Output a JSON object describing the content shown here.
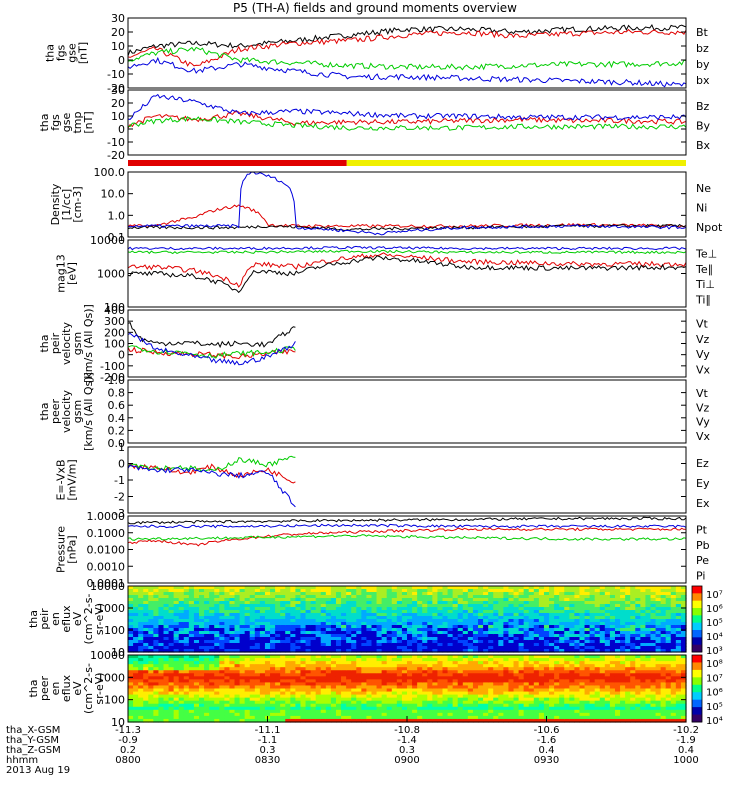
{
  "title": "P5 (TH-A) fields and ground moments overview",
  "colors": {
    "black": "#000000",
    "red": "#e00000",
    "green": "#00cc00",
    "blue": "#0000dd",
    "yellow": "#f0f000"
  },
  "chart_data": [
    {
      "type": "line",
      "ylabel": [
        "tha",
        "fgs",
        "gse",
        "[nT]"
      ],
      "yticks": [
        "30",
        "20",
        "10",
        "0",
        "-10",
        "-20"
      ],
      "ylim": [
        -20,
        30
      ],
      "legend": [
        {
          "text": "Bt",
          "color": "black"
        },
        {
          "text": "bz",
          "color": "red"
        },
        {
          "text": "by",
          "color": "green"
        },
        {
          "text": "bx",
          "color": "blue"
        }
      ],
      "series": [
        {
          "name": "Bt",
          "color": "black",
          "x": [
            0,
            0.05,
            0.12,
            0.2,
            0.3,
            0.4,
            0.5,
            0.6,
            0.7,
            0.8,
            0.9,
            1
          ],
          "y": [
            5,
            10,
            12,
            10,
            14,
            18,
            22,
            22,
            20,
            22,
            23,
            23
          ]
        },
        {
          "name": "bz",
          "color": "red",
          "x": [
            0,
            0.05,
            0.12,
            0.2,
            0.3,
            0.4,
            0.5,
            0.6,
            0.7,
            0.8,
            0.9,
            1
          ],
          "y": [
            2,
            8,
            -5,
            8,
            12,
            14,
            18,
            20,
            17,
            19,
            20,
            20
          ]
        },
        {
          "name": "by",
          "color": "green",
          "x": [
            0,
            0.05,
            0.12,
            0.2,
            0.3,
            0.4,
            0.5,
            0.6,
            0.7,
            0.8,
            0.9,
            1
          ],
          "y": [
            0,
            5,
            8,
            0,
            -2,
            -4,
            -5,
            -5,
            -4,
            -3,
            -3,
            -2
          ]
        },
        {
          "name": "bx",
          "color": "blue",
          "x": [
            0,
            0.05,
            0.12,
            0.2,
            0.3,
            0.4,
            0.5,
            0.6,
            0.7,
            0.8,
            0.9,
            1
          ],
          "y": [
            -5,
            0,
            -8,
            -3,
            -8,
            -12,
            -12,
            -13,
            -14,
            -15,
            -16,
            -18
          ]
        }
      ]
    },
    {
      "type": "line",
      "ylabel": [
        "tha",
        "fgs",
        "gse",
        "tmp",
        "[nT]"
      ],
      "yticks": [
        "30",
        "20",
        "10",
        "0",
        "-10",
        "-20"
      ],
      "ylim": [
        -25,
        30
      ],
      "legend": [
        {
          "text": "Bz",
          "color": "red"
        },
        {
          "text": "By",
          "color": "green"
        },
        {
          "text": "Bx",
          "color": "blue"
        }
      ],
      "series": [
        {
          "name": "Bz",
          "color": "red",
          "x": [
            0,
            0.05,
            0.12,
            0.2,
            0.3,
            0.4,
            0.5,
            0.6,
            0.7,
            0.8,
            0.9,
            1
          ],
          "y": [
            0,
            8,
            5,
            10,
            2,
            3,
            3,
            4,
            5,
            4,
            4,
            3
          ]
        },
        {
          "name": "By",
          "color": "green",
          "x": [
            0,
            0.05,
            0.12,
            0.2,
            0.3,
            0.4,
            0.5,
            0.6,
            0.7,
            0.8,
            0.9,
            1
          ],
          "y": [
            0,
            4,
            6,
            3,
            0,
            -2,
            -2,
            -2,
            -1,
            -1,
            -1,
            -1
          ]
        },
        {
          "name": "Bx",
          "color": "blue",
          "x": [
            0,
            0.05,
            0.12,
            0.2,
            0.3,
            0.4,
            0.5,
            0.6,
            0.7,
            0.8,
            0.9,
            1
          ],
          "y": [
            5,
            25,
            20,
            10,
            12,
            10,
            8,
            8,
            7,
            7,
            7,
            7
          ]
        }
      ]
    },
    {
      "type": "line",
      "ylog": true,
      "ylabel": [
        "Density",
        "[1/cc]",
        "[cm-3]"
      ],
      "yticks": [
        "100.0",
        "10.0",
        "1.0",
        "0.1"
      ],
      "ylim": [
        0.08,
        200
      ],
      "legend": [
        {
          "text": "Ne",
          "color": "red"
        },
        {
          "text": "Ni",
          "color": "black"
        },
        {
          "text": "Npot",
          "color": "blue"
        }
      ],
      "series": [
        {
          "name": "Ne",
          "color": "red",
          "x": [
            0,
            0.05,
            0.12,
            0.2,
            0.25,
            0.3,
            0.45,
            0.6,
            0.8,
            1
          ],
          "y": [
            0.3,
            0.3,
            0.8,
            3.5,
            0.35,
            0.3,
            0.3,
            0.3,
            0.35,
            0.3
          ]
        },
        {
          "name": "Ni",
          "color": "black",
          "x": [
            0,
            0.2,
            0.25,
            0.4,
            0.6,
            0.8,
            1
          ],
          "y": [
            0.25,
            0.25,
            0.3,
            0.2,
            0.25,
            0.3,
            0.3
          ]
        },
        {
          "name": "Npot",
          "color": "blue",
          "x": [
            0,
            0.2,
            0.22,
            0.3,
            0.45,
            0.6,
            0.8,
            1
          ],
          "y": [
            0.3,
            0.3,
            200,
            0.25,
            0.12,
            0.25,
            0.3,
            0.25
          ]
        }
      ]
    },
    {
      "type": "line",
      "ylog": true,
      "ylabel": [
        "mag13",
        "[eV]"
      ],
      "yticks": [
        "10000",
        "1000",
        "100"
      ],
      "ylim": [
        100,
        15000
      ],
      "legend": [
        {
          "text": "Te⊥",
          "color": "red"
        },
        {
          "text": "Te∥",
          "color": "black"
        },
        {
          "text": "Ti⊥",
          "color": "blue"
        },
        {
          "text": "Ti∥",
          "color": "green"
        }
      ],
      "series": [
        {
          "name": "Te⊥",
          "color": "red",
          "x": [
            0,
            0.05,
            0.12,
            0.2,
            0.23,
            0.3,
            0.45,
            0.6,
            0.8,
            1
          ],
          "y": [
            2000,
            2000,
            1500,
            500,
            2500,
            2000,
            5000,
            3000,
            2500,
            2500
          ]
        },
        {
          "name": "Te∥",
          "color": "black",
          "x": [
            0,
            0.05,
            0.12,
            0.2,
            0.23,
            0.3,
            0.45,
            0.6,
            0.8,
            1
          ],
          "y": [
            1200,
            1200,
            1000,
            300,
            1500,
            1200,
            4000,
            2000,
            1800,
            2000
          ]
        },
        {
          "name": "Ti⊥",
          "color": "blue",
          "x": [
            0,
            0.2,
            0.4,
            0.6,
            0.8,
            1
          ],
          "y": [
            8000,
            8000,
            8500,
            8000,
            8000,
            8000
          ]
        },
        {
          "name": "Ti∥",
          "color": "green",
          "x": [
            0,
            0.2,
            0.4,
            0.6,
            0.8,
            1
          ],
          "y": [
            6000,
            6000,
            6500,
            6000,
            6000,
            6000
          ]
        }
      ]
    },
    {
      "type": "line",
      "ylabel": [
        "tha",
        "peir",
        "velocity",
        "gsm",
        "[km/s (All Qs)]"
      ],
      "yticks": [
        "400",
        "300",
        "200",
        "100",
        "0",
        "-100",
        "-200"
      ],
      "ylim": [
        -200,
        400
      ],
      "legend": [
        {
          "text": "Vt",
          "color": "black"
        },
        {
          "text": "Vz",
          "color": "red"
        },
        {
          "text": "Vy",
          "color": "green"
        },
        {
          "text": "Vx",
          "color": "blue"
        }
      ],
      "series": [
        {
          "name": "Vt",
          "color": "black",
          "x": [
            0,
            0.02,
            0.05,
            0.1,
            0.15,
            0.2,
            0.25,
            0.3
          ],
          "y": [
            300,
            150,
            100,
            110,
            90,
            100,
            90,
            250
          ]
        },
        {
          "name": "Vz",
          "color": "red",
          "x": [
            0,
            0.05,
            0.1,
            0.15,
            0.2,
            0.25,
            0.3
          ],
          "y": [
            50,
            20,
            10,
            0,
            -20,
            10,
            30
          ]
        },
        {
          "name": "Vy",
          "color": "green",
          "x": [
            0,
            0.05,
            0.1,
            0.15,
            0.2,
            0.25,
            0.3
          ],
          "y": [
            80,
            30,
            20,
            -10,
            10,
            20,
            60
          ]
        },
        {
          "name": "Vx",
          "color": "blue",
          "x": [
            0,
            0.05,
            0.1,
            0.15,
            0.2,
            0.25,
            0.3
          ],
          "y": [
            200,
            50,
            0,
            -50,
            -80,
            -20,
            100
          ]
        }
      ]
    },
    {
      "type": "line",
      "ylabel": [
        "tha",
        "peer",
        "velocity",
        "gsm",
        "[km/s (All Qs)]"
      ],
      "yticks": [
        "1.0",
        "0.8",
        "0.6",
        "0.4",
        "0.2",
        "0.0"
      ],
      "ylim": [
        0,
        1
      ],
      "legend": [
        {
          "text": "Vt",
          "color": "black"
        },
        {
          "text": "Vz",
          "color": "red"
        },
        {
          "text": "Vy",
          "color": "green"
        },
        {
          "text": "Vx",
          "color": "blue"
        }
      ],
      "series": []
    },
    {
      "type": "line",
      "ylabel": [
        "E=-VxB",
        "[mV/m]"
      ],
      "yticks": [
        "1",
        "0",
        "-1",
        "-2",
        "-3"
      ],
      "ylim": [
        -3.5,
        1.8
      ],
      "legend": [
        {
          "text": "Ez",
          "color": "red"
        },
        {
          "text": "Ey",
          "color": "green"
        },
        {
          "text": "Ex",
          "color": "blue"
        }
      ],
      "series": [
        {
          "name": "Ez",
          "color": "red",
          "x": [
            0,
            0.05,
            0.1,
            0.15,
            0.2,
            0.25,
            0.3
          ],
          "y": [
            0.3,
            0.2,
            -0.3,
            0.2,
            -0.5,
            0,
            -1
          ]
        },
        {
          "name": "Ey",
          "color": "green",
          "x": [
            0,
            0.05,
            0.1,
            0.15,
            0.2,
            0.25,
            0.3
          ],
          "y": [
            0.5,
            0.1,
            0.2,
            -0.2,
            0.8,
            0.4,
            1
          ]
        },
        {
          "name": "Ex",
          "color": "blue",
          "x": [
            0,
            0.05,
            0.1,
            0.15,
            0.2,
            0.25,
            0.3
          ],
          "y": [
            0.2,
            -0.1,
            0,
            -0.3,
            -0.5,
            -0.2,
            -3
          ]
        }
      ]
    },
    {
      "type": "line",
      "ylog": true,
      "ylabel": [
        "Pressure",
        "[nPa]"
      ],
      "yticks": [
        "1.0000",
        "0.1000",
        "0.0100",
        "0.0010",
        "0.0001"
      ],
      "ylim": [
        0.0001,
        1.3
      ],
      "legend": [
        {
          "text": "Pt",
          "color": "black"
        },
        {
          "text": "Pb",
          "color": "red"
        },
        {
          "text": "Pe",
          "color": "green"
        },
        {
          "text": "Pi",
          "color": "blue"
        }
      ],
      "series": [
        {
          "name": "Pt",
          "color": "black",
          "x": [
            0,
            0.2,
            0.4,
            0.6,
            0.8,
            1
          ],
          "y": [
            0.5,
            0.6,
            0.7,
            0.8,
            0.9,
            0.9
          ]
        },
        {
          "name": "Pb",
          "color": "red",
          "x": [
            0,
            0.05,
            0.12,
            0.2,
            0.3,
            0.45,
            0.6,
            0.8,
            1
          ],
          "y": [
            0.03,
            0.04,
            0.02,
            0.05,
            0.1,
            0.15,
            0.2,
            0.2,
            0.2
          ]
        },
        {
          "name": "Pe",
          "color": "green",
          "x": [
            0,
            0.2,
            0.4,
            0.6,
            0.8,
            1
          ],
          "y": [
            0.05,
            0.06,
            0.08,
            0.06,
            0.05,
            0.05
          ]
        },
        {
          "name": "Pi",
          "color": "blue",
          "x": [
            0,
            0.2,
            0.4,
            0.6,
            0.8,
            1
          ],
          "y": [
            0.3,
            0.3,
            0.35,
            0.3,
            0.3,
            0.3
          ]
        }
      ]
    },
    {
      "type": "heatmap",
      "ylog": true,
      "ylabel": [
        "tha",
        "peir",
        "en",
        "eflux",
        "eV",
        "(cm^2-s-",
        "sr-eV)"
      ],
      "yticks": [
        "10000",
        "1000",
        "100",
        "10"
      ],
      "ylim": [
        5,
        20000
      ],
      "cbar": [
        "10⁷",
        "10⁶",
        "10⁵",
        "10⁴",
        "10³"
      ]
    },
    {
      "type": "heatmap",
      "ylog": true,
      "ylabel": [
        "tha",
        "peer",
        "en",
        "eflux",
        "eV",
        "(cm^2-s-",
        "sr-eV)"
      ],
      "yticks": [
        "10000",
        "1000",
        "100",
        "10"
      ],
      "ylim": [
        7,
        20000
      ],
      "cbar": [
        "10⁸",
        "10⁷",
        "10⁶",
        "10⁵",
        "10⁴"
      ]
    }
  ],
  "xaxis": {
    "rows": [
      {
        "label": "tha_X-GSM",
        "values": [
          "-11.3",
          "-11.1",
          "-10.8",
          "-10.6",
          "-10.2"
        ]
      },
      {
        "label": "tha_Y-GSM",
        "values": [
          "-0.9",
          "-1.1",
          "-1.4",
          "-1.6",
          "-1.9"
        ]
      },
      {
        "label": "tha_Z-GSM",
        "values": [
          "0.2",
          "0.3",
          "0.3",
          "0.4",
          "0.4"
        ]
      },
      {
        "label": "hhmm",
        "values": [
          "0800",
          "0830",
          "0900",
          "0930",
          "1000"
        ]
      }
    ],
    "date": "2013 Aug 19"
  },
  "status_bar": {
    "segments": [
      {
        "color": "red",
        "to": 0.392
      },
      {
        "color": "yellow",
        "to": 1
      }
    ]
  }
}
